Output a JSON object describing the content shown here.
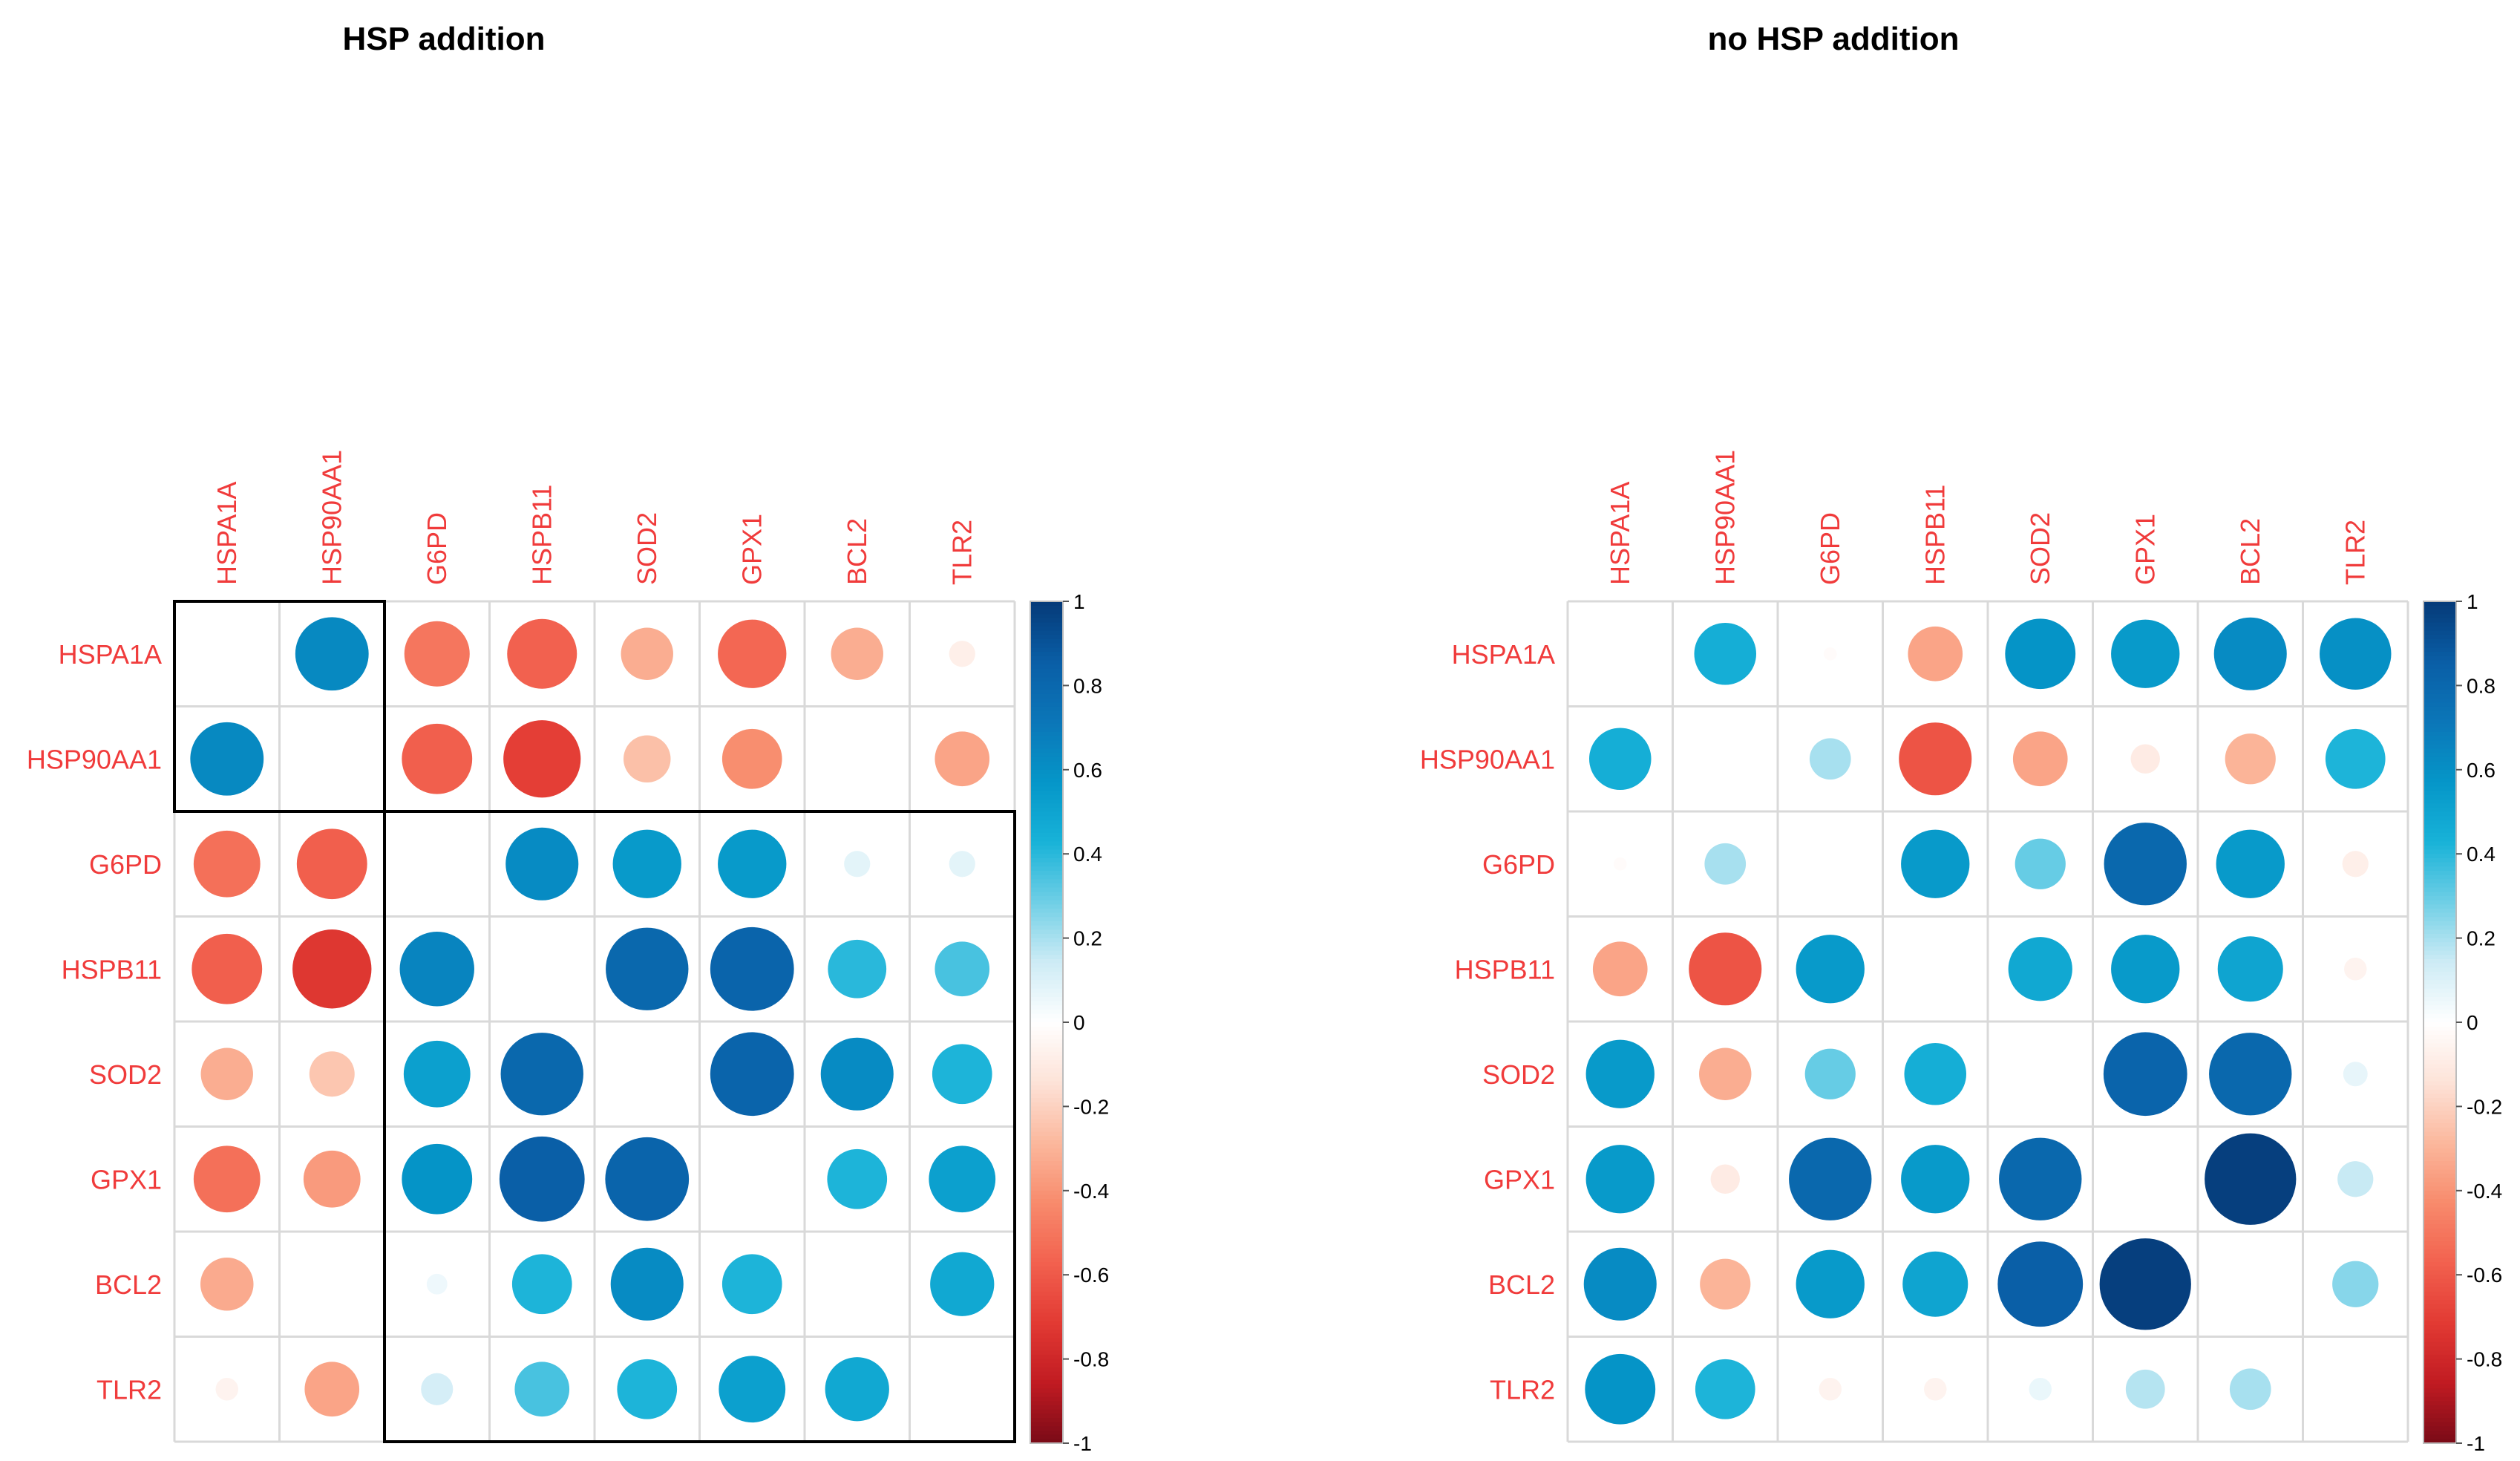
{
  "panels": [
    {
      "id": "left",
      "title": "HSP addition"
    },
    {
      "id": "right",
      "title": "no HSP addition"
    }
  ],
  "colors": {
    "label_color": "#f03b3b",
    "grid_color": "#d9d9d9",
    "box_color": "#000000",
    "scale": [
      "#67001f",
      "#b2182b",
      "#d6604d",
      "#f4a582",
      "#fddbc7",
      "#ffffff",
      "#d1e5f0",
      "#92c5de",
      "#4393c3",
      "#2166ac",
      "#053061"
    ],
    "scale_note": "custom corrplot-like with cyan mid-blue",
    "positive_scale": [
      "#ffffff",
      "#cdebf5",
      "#6fcfe6",
      "#18b2d8",
      "#0596c8",
      "#0b76b8",
      "#0a5ea6",
      "#053a78"
    ],
    "negative_scale": [
      "#ffffff",
      "#fde3d8",
      "#fbb89d",
      "#f88b6c",
      "#f2614f",
      "#e23a33",
      "#c11b22",
      "#7a0a17"
    ]
  },
  "chart_data": [
    {
      "type": "heatmap",
      "subtype": "corrplot-circle",
      "title": "HSP addition",
      "variables": [
        "HSPA1A",
        "HSP90AA1",
        "G6PD",
        "HSPB11",
        "SOD2",
        "GPX1",
        "BCL2",
        "TLR2"
      ],
      "matrix": [
        [
          null,
          0.63,
          -0.5,
          -0.57,
          -0.32,
          -0.55,
          -0.32,
          -0.08
        ],
        [
          0.63,
          null,
          -0.58,
          -0.7,
          -0.26,
          -0.42,
          0.0,
          -0.35
        ],
        [
          -0.52,
          -0.58,
          null,
          0.62,
          0.55,
          0.55,
          0.08,
          0.08
        ],
        [
          -0.58,
          -0.73,
          0.65,
          null,
          0.8,
          0.82,
          0.4,
          0.35
        ],
        [
          -0.32,
          -0.24,
          0.52,
          0.8,
          null,
          0.82,
          0.62,
          0.42
        ],
        [
          -0.52,
          -0.38,
          0.58,
          0.85,
          0.82,
          null,
          0.42,
          0.52
        ],
        [
          -0.33,
          0.0,
          0.05,
          0.42,
          0.62,
          0.42,
          null,
          0.48
        ],
        [
          -0.06,
          -0.35,
          0.12,
          0.35,
          0.42,
          0.52,
          0.48,
          null
        ]
      ],
      "clusters": [
        [
          0,
          1
        ],
        [
          2,
          3,
          4,
          5,
          6,
          7
        ]
      ],
      "colorbar": {
        "range": [
          -1,
          1
        ],
        "ticks": [
          "1",
          "0.8",
          "0.6",
          "0.4",
          "0.2",
          "0",
          "-0.2",
          "-0.4",
          "-0.6",
          "-0.8",
          "-1"
        ]
      }
    },
    {
      "type": "heatmap",
      "subtype": "corrplot-circle",
      "title": "no HSP addition",
      "variables": [
        "HSPA1A",
        "HSP90AA1",
        "G6PD",
        "HSPB11",
        "SOD2",
        "GPX1",
        "BCL2",
        "TLR2"
      ],
      "matrix": [
        [
          null,
          0.45,
          -0.02,
          -0.35,
          0.58,
          0.55,
          0.62,
          0.6
        ],
        [
          0.45,
          null,
          0.2,
          -0.62,
          -0.35,
          -0.1,
          -0.3,
          0.42
        ],
        [
          -0.02,
          0.2,
          null,
          0.55,
          0.3,
          0.8,
          0.55,
          -0.08
        ],
        [
          -0.35,
          -0.62,
          0.55,
          null,
          0.48,
          0.55,
          0.5,
          -0.06
        ],
        [
          0.55,
          -0.32,
          0.3,
          0.45,
          null,
          0.82,
          0.8,
          0.07
        ],
        [
          0.55,
          -0.1,
          0.8,
          0.55,
          0.8,
          null,
          0.98,
          0.15
        ],
        [
          0.62,
          -0.3,
          0.55,
          0.5,
          0.85,
          0.98,
          null,
          0.25
        ],
        [
          0.58,
          0.42,
          -0.06,
          -0.06,
          0.06,
          0.18,
          0.2,
          null
        ]
      ],
      "colorbar": {
        "range": [
          -1,
          1
        ],
        "ticks": [
          "1",
          "0.8",
          "0.6",
          "0.4",
          "0.2",
          "0",
          "-0.2",
          "-0.4",
          "-0.6",
          "-0.8",
          "-1"
        ]
      }
    }
  ]
}
